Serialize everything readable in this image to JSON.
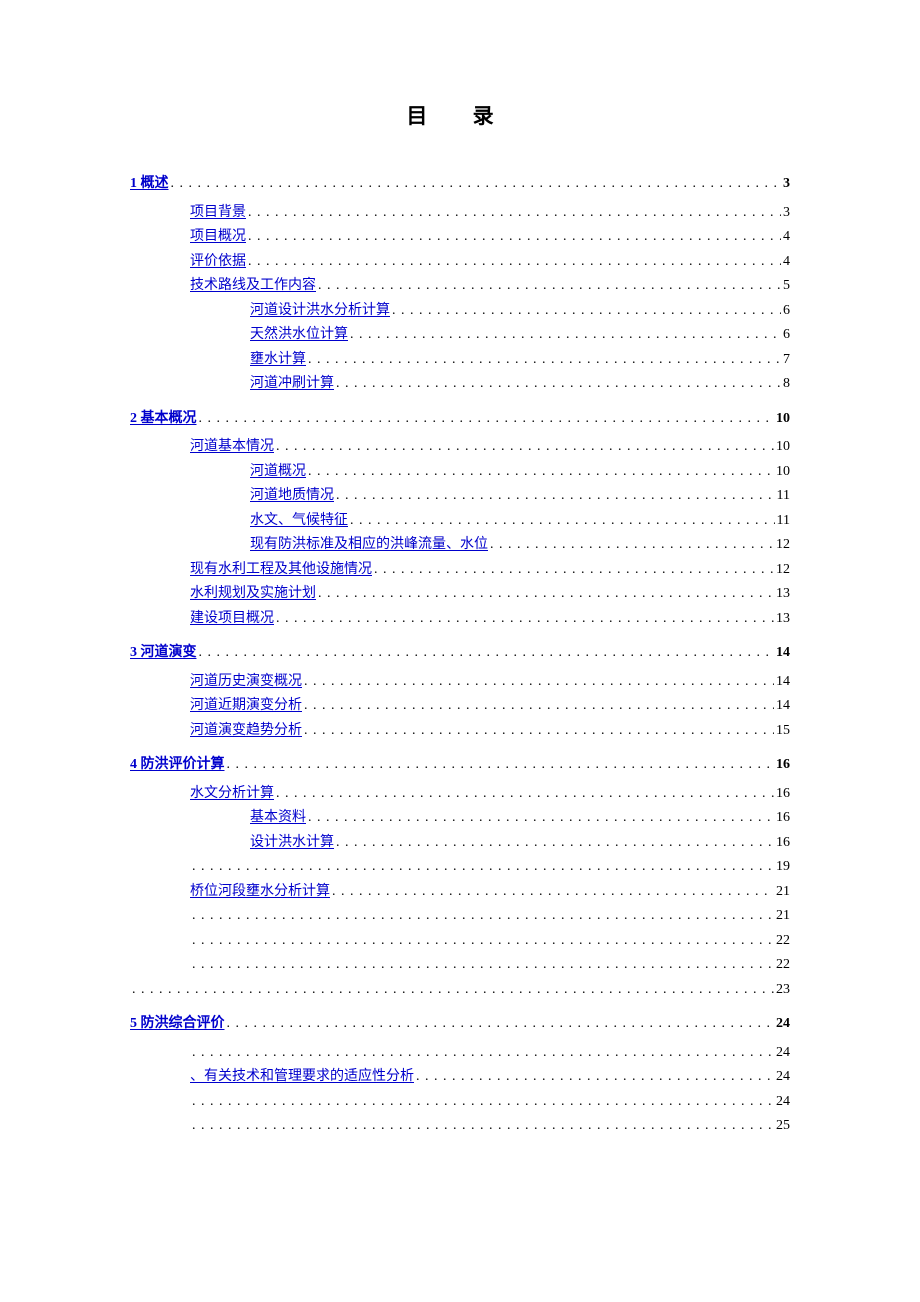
{
  "title": "目 录",
  "entries": [
    {
      "level": 0,
      "label": "1 概述",
      "page": "3",
      "link": true,
      "blank": false
    },
    {
      "level": 1,
      "label": " 项目背景",
      "page": "3",
      "link": true,
      "blank": false
    },
    {
      "level": 1,
      "label": " 项目概况",
      "page": "4",
      "link": true,
      "blank": false
    },
    {
      "level": 1,
      "label": " 评价依据",
      "page": "4",
      "link": true,
      "blank": false
    },
    {
      "level": 1,
      "label": " 技术路线及工作内容",
      "page": "5",
      "link": true,
      "blank": false
    },
    {
      "level": 2,
      "label": " 河道设计洪水分析计算",
      "page": "6",
      "link": true,
      "blank": false
    },
    {
      "level": 2,
      "label": " 天然洪水位计算",
      "page": "6",
      "link": true,
      "blank": false
    },
    {
      "level": 2,
      "label": " 壅水计算",
      "page": "7",
      "link": true,
      "blank": false
    },
    {
      "level": 2,
      "label": " 河道冲刷计算",
      "page": "8",
      "link": true,
      "blank": false
    },
    {
      "level": 0,
      "label": "2 基本概况",
      "page": "10",
      "link": true,
      "blank": false
    },
    {
      "level": 1,
      "label": " 河道基本情况",
      "page": "10",
      "link": true,
      "blank": false
    },
    {
      "level": 2,
      "label": " 河道概况",
      "page": "10",
      "link": true,
      "blank": false
    },
    {
      "level": 2,
      "label": " 河道地质情况",
      "page": "11",
      "link": true,
      "blank": false
    },
    {
      "level": 2,
      "label": " 水文、气候特征",
      "page": "11",
      "link": true,
      "blank": false
    },
    {
      "level": 2,
      "label": " 现有防洪标准及相应的洪峰流量、水位",
      "page": "12",
      "link": true,
      "blank": false
    },
    {
      "level": 1,
      "label": " 现有水利工程及其他设施情况",
      "page": "12",
      "link": true,
      "blank": false
    },
    {
      "level": 1,
      "label": " 水利规划及实施计划",
      "page": "13",
      "link": true,
      "blank": false
    },
    {
      "level": 1,
      "label": " 建设项目概况",
      "page": "13",
      "link": true,
      "blank": false
    },
    {
      "level": 0,
      "label": "3 河道演变",
      "page": "14",
      "link": true,
      "blank": false
    },
    {
      "level": 1,
      "label": " 河道历史演变概况",
      "page": "14",
      "link": true,
      "blank": false
    },
    {
      "level": 1,
      "label": " 河道近期演变分析",
      "page": "14",
      "link": true,
      "blank": false
    },
    {
      "level": 1,
      "label": " 河道演变趋势分析",
      "page": "15",
      "link": true,
      "blank": false
    },
    {
      "level": 0,
      "label": "4 防洪评价计算",
      "page": "16",
      "link": true,
      "blank": false
    },
    {
      "level": 1,
      "label": " 水文分析计算",
      "page": "16",
      "link": true,
      "blank": false
    },
    {
      "level": 2,
      "label": " 基本资料",
      "page": "16",
      "link": true,
      "blank": false
    },
    {
      "level": 2,
      "label": " 设计洪水计算",
      "page": "16",
      "link": true,
      "blank": false
    },
    {
      "level": 1,
      "label": "",
      "page": "19",
      "link": false,
      "blank": true
    },
    {
      "level": 1,
      "label": " 桥位河段壅水分析计算",
      "page": "21",
      "link": true,
      "blank": false
    },
    {
      "level": 1,
      "label": "",
      "page": "21",
      "link": false,
      "blank": true
    },
    {
      "level": 1,
      "label": "",
      "page": "22",
      "link": false,
      "blank": true
    },
    {
      "level": 1,
      "label": "",
      "page": "22",
      "link": false,
      "blank": true
    },
    {
      "level": 0,
      "label": "",
      "page": "23",
      "link": false,
      "blank": true
    },
    {
      "level": 0,
      "label": "5 防洪综合评价",
      "page": "24",
      "link": true,
      "blank": false
    },
    {
      "level": 1,
      "label": "",
      "page": "24",
      "link": false,
      "blank": true
    },
    {
      "level": 1,
      "label": "、有关技术和管理要求的适应性分析",
      "page": "24",
      "link": true,
      "blank": false
    },
    {
      "level": 1,
      "label": "",
      "page": "24",
      "link": false,
      "blank": true
    },
    {
      "level": 1,
      "label": "",
      "page": "25",
      "link": false,
      "blank": true
    }
  ],
  "colors": {
    "link": "#0000cc",
    "text": "#000000",
    "background": "#ffffff"
  },
  "fonts": {
    "title_size": 21,
    "entry_size": 14,
    "family": "SimSun"
  }
}
